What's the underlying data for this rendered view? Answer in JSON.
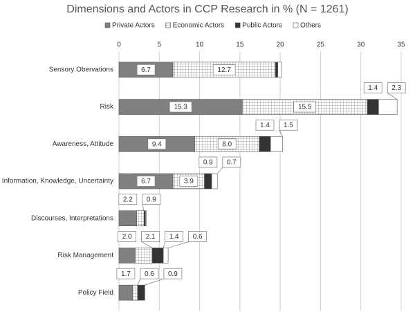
{
  "chart_data": {
    "type": "stacked-bar-horizontal",
    "title": "Dimensions and Actors in CCP Research in % (N = 1261)",
    "categories": [
      "Sensory Obervations",
      "Risk",
      "Awareness, Attitude",
      "Information, Knowledge, Uncertainty",
      "Discourses, Interpretations",
      "Risk Management",
      "Policy Field"
    ],
    "series": [
      {
        "name": "Private Actors",
        "color": "#808080",
        "pattern": "solid",
        "values": [
          6.7,
          15.3,
          9.4,
          6.7,
          2.2,
          2.0,
          1.7
        ],
        "value_labels": [
          "6.7",
          "15.3",
          "9.4",
          "6.7",
          "2.2",
          "2.0",
          "1.7"
        ]
      },
      {
        "name": "Economic Actors",
        "color": "#9a9a9a",
        "pattern": "grid",
        "values": [
          12.7,
          15.5,
          8.0,
          3.9,
          0.9,
          2.1,
          0.6
        ],
        "value_labels": [
          "12.7",
          "15.5",
          "8.0",
          "3.9",
          "0.9",
          "2.1",
          "0.6"
        ]
      },
      {
        "name": "Public Actors",
        "color": "#333333",
        "pattern": "solid",
        "values": [
          0.3,
          1.4,
          1.4,
          0.9,
          0.2,
          1.4,
          0.9
        ],
        "value_labels": [
          null,
          "1.4",
          "1.4",
          "0.9",
          null,
          "1.4",
          "0.9"
        ]
      },
      {
        "name": "Others",
        "color": "#ffffff",
        "pattern": "solid",
        "values": [
          0.5,
          2.3,
          1.5,
          0.7,
          0.1,
          0.6,
          null
        ],
        "value_labels": [
          null,
          "2.3",
          "1.5",
          "0.7",
          null,
          "0.6",
          null
        ]
      }
    ],
    "xlim": [
      0,
      35
    ],
    "xticks": [
      0,
      5,
      10,
      15,
      20,
      25,
      30,
      35
    ],
    "grid": true,
    "legend": "top"
  }
}
